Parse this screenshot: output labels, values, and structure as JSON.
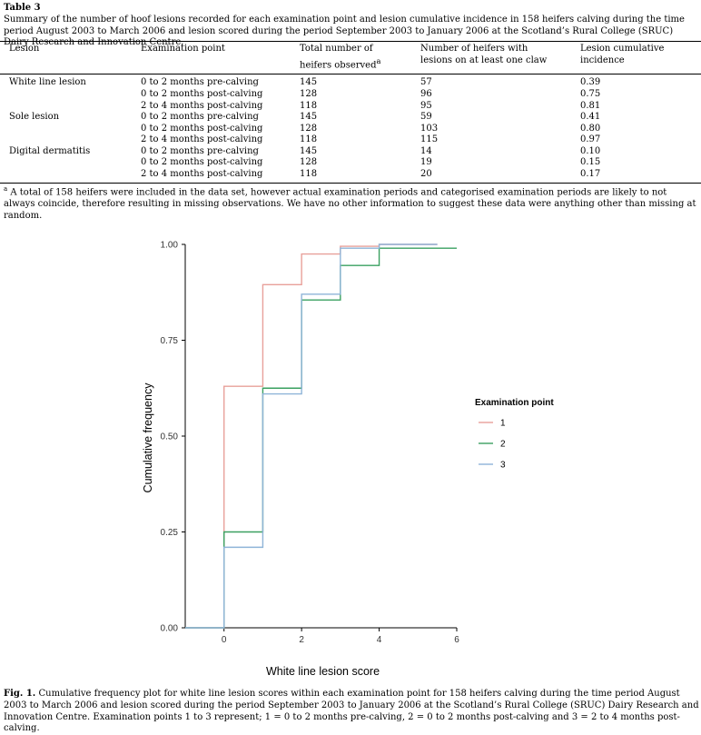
{
  "table": {
    "label": "Table 3",
    "caption": "Summary of the number of hoof lesions recorded for each examination point and lesion cumulative incidence in 158 heifers calving during the time period August 2003 to March 2006 and lesion scored during the period September 2003 to January 2006 at the Scotland’s Rural College (SRUC) Dairy Research and Innovation Centre.",
    "headers": {
      "lesion": "Lesion",
      "exam": "Examination point",
      "total_line1": "Total number of",
      "total_line2": "heifers observed",
      "total_sup": "a",
      "num_line1": "Number of heifers with",
      "num_line2": "lesions on at least one claw",
      "inc": "Lesion cumulative incidence"
    },
    "rows": [
      {
        "lesion": "White line lesion",
        "exam": "0 to 2 months pre-calving",
        "total": "145",
        "num": "57",
        "inc": "0.39"
      },
      {
        "lesion": "",
        "exam": "0 to 2 months post-calving",
        "total": "128",
        "num": "96",
        "inc": "0.75"
      },
      {
        "lesion": "",
        "exam": "2 to 4 months post-calving",
        "total": "118",
        "num": "95",
        "inc": "0.81"
      },
      {
        "lesion": "Sole lesion",
        "exam": "0 to 2 months pre-calving",
        "total": "145",
        "num": "59",
        "inc": "0.41"
      },
      {
        "lesion": "",
        "exam": "0 to 2 months post-calving",
        "total": "128",
        "num": "103",
        "inc": "0.80"
      },
      {
        "lesion": "",
        "exam": "2 to 4 months post-calving",
        "total": "118",
        "num": "115",
        "inc": "0.97"
      },
      {
        "lesion": "Digital dermatitis",
        "exam": "0 to 2 months pre-calving",
        "total": "145",
        "num": "14",
        "inc": "0.10"
      },
      {
        "lesion": "",
        "exam": "0 to 2 months post-calving",
        "total": "128",
        "num": "19",
        "inc": "0.15"
      },
      {
        "lesion": "",
        "exam": "2 to 4 months post-calving",
        "total": "118",
        "num": "20",
        "inc": "0.17"
      }
    ],
    "footnote_marker": "a",
    "footnote": "A total of 158 heifers were included in the data set, however actual examination periods and categorised examination periods are likely to not always coincide, therefore resulting in missing observations. We have no other information to suggest these data were anything other than missing at random."
  },
  "figure": {
    "caption_label": "Fig. 1.",
    "caption": "Cumulative frequency plot for white line lesion scores within each examination point for 158 heifers calving during the time period August 2003 to March 2006 and lesion scored during the period September 2003 to January 2006 at the Scotland’s Rural College (SRUC) Dairy Research and Innovation Centre. Examination points 1 to 3 represent; 1 = 0 to 2 months pre-calving, 2 = 0 to 2 months post-calving and 3 = 2 to 4 months post-calving."
  },
  "chart_data": {
    "type": "line",
    "step": true,
    "title": "",
    "xlabel": "White line lesion score",
    "ylabel": "Cumulative frequency",
    "xlim": [
      -1,
      6
    ],
    "ylim": [
      0,
      1
    ],
    "xticks": [
      0,
      2,
      4,
      6
    ],
    "yticks": [
      "0.00",
      "0.25",
      "0.50",
      "0.75",
      "1.00"
    ],
    "xtick_labels": [
      "0",
      "2",
      "4",
      "6"
    ],
    "grid": false,
    "legend": {
      "title": "Examination point",
      "position": "right"
    },
    "series": [
      {
        "name": "1",
        "color": "#e8a09a",
        "x": [
          -1,
          0,
          1,
          2,
          3,
          4,
          5.5
        ],
        "y": [
          0.0,
          0.63,
          0.895,
          0.975,
          0.995,
          1.0,
          1.0
        ]
      },
      {
        "name": "2",
        "color": "#3aa060",
        "x": [
          -1,
          0,
          1,
          2,
          3,
          4,
          6
        ],
        "y": [
          0.0,
          0.25,
          0.625,
          0.855,
          0.945,
          0.99,
          0.99
        ]
      },
      {
        "name": "3",
        "color": "#8fb4d8",
        "x": [
          -1,
          0,
          1,
          2,
          3,
          4,
          5.5
        ],
        "y": [
          0.0,
          0.21,
          0.61,
          0.87,
          0.99,
          1.0,
          1.0
        ]
      }
    ]
  }
}
